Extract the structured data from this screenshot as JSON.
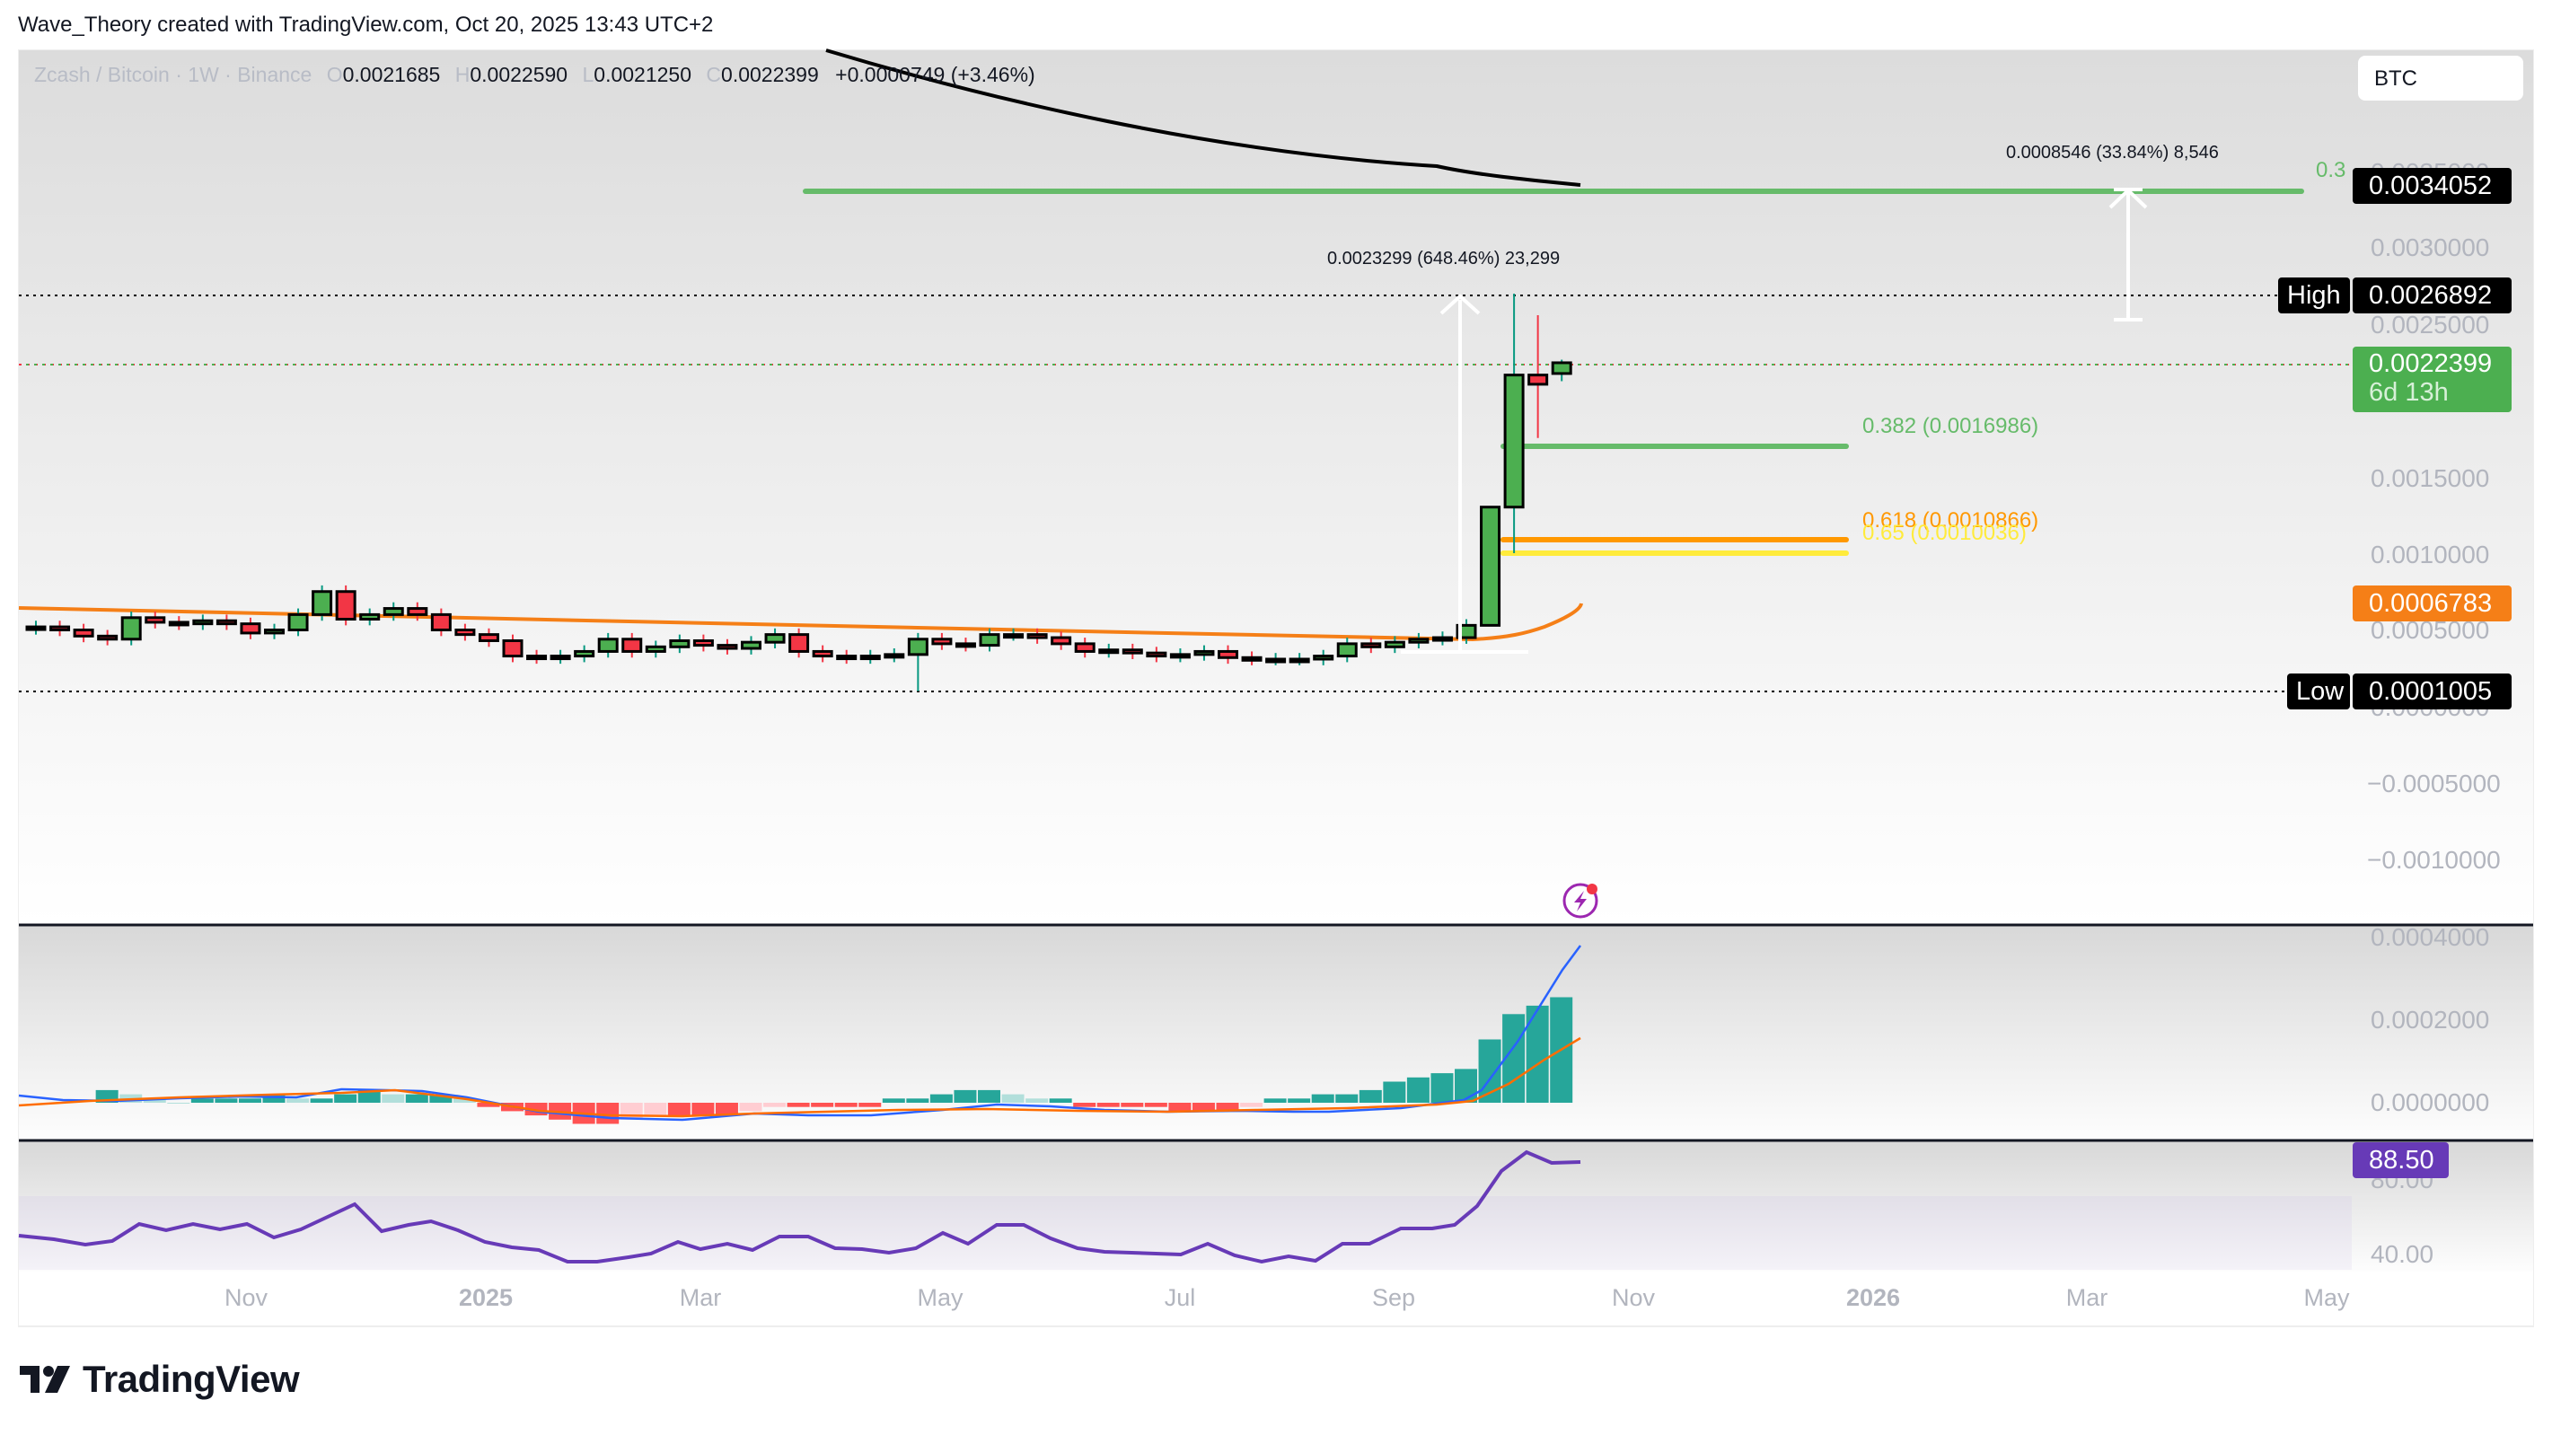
{
  "header": {
    "attribution": "Wave_Theory created with TradingView.com, Oct 20, 2025 13:43 UTC+2"
  },
  "legend": {
    "symbol": "Zcash / Bitcoin · 1W · Binance",
    "open_key": "O",
    "open": "0.0021685",
    "high_key": "H",
    "high": "0.0022590",
    "low_key": "L",
    "low": "0.0021250",
    "close_key": "C",
    "close": "0.0022399",
    "change": "+0.0000749 (+3.46%)"
  },
  "currency_button": {
    "label": "BTC"
  },
  "price_axis": {
    "ticks": [
      "0.0035000",
      "0.0030000",
      "0.0025000",
      "0.0015000",
      "0.0010000",
      "0.0005000",
      "0.0000000",
      "−0.0005000",
      "−0.0010000"
    ]
  },
  "price_tags": {
    "target": {
      "value": "0.0034052",
      "color": "#000000"
    },
    "high": {
      "label": "High",
      "value": "0.0026892",
      "color": "#000000"
    },
    "last": {
      "value": "0.0022399",
      "countdown": "6d 13h",
      "color": "#4caf50"
    },
    "ema": {
      "value": "0.0006783",
      "color": "#f57f17"
    },
    "low": {
      "label": "Low",
      "value": "0.0001005",
      "color": "#000000"
    }
  },
  "annotations": {
    "measure_big": "0.0023299 (648.46%) 23,299",
    "measure_target": "0.0008546 (33.84%) 8,546",
    "fib_target_label": "0.3",
    "fib_382": "0.382 (0.0016986)",
    "fib_618": "0.618 (0.0010866)",
    "fib_65": "0.65 (0.0010036)"
  },
  "macd_axis": {
    "ticks": [
      "0.0004000",
      "0.0002000",
      "0.0000000"
    ]
  },
  "rsi": {
    "value": "88.50",
    "color": "#673ab7",
    "ticks": [
      "80.00",
      "40.00"
    ]
  },
  "time_axis": {
    "labels": [
      {
        "text": "Nov",
        "year": false
      },
      {
        "text": "2025",
        "year": true
      },
      {
        "text": "Mar",
        "year": false
      },
      {
        "text": "May",
        "year": false
      },
      {
        "text": "Jul",
        "year": false
      },
      {
        "text": "Sep",
        "year": false
      },
      {
        "text": "Nov",
        "year": false
      },
      {
        "text": "2026",
        "year": true
      },
      {
        "text": "Mar",
        "year": false
      },
      {
        "text": "May",
        "year": false
      }
    ]
  },
  "branding": {
    "logo_text": "TradingView"
  },
  "colors": {
    "up": "#4caf50",
    "down": "#f23645",
    "ema": "#f57f17",
    "ma_black": "#000000",
    "fib_target": "#66bb6a",
    "fib_382": "#66bb6a",
    "fib_618": "#ff9800",
    "fib_65": "#ffeb3b",
    "macd_line": "#2962ff",
    "signal_line": "#ff6d00",
    "hist_up": "#26a69a",
    "hist_down": "#ff5252",
    "rsi": "#673ab7"
  },
  "chart_data": {
    "type": "candlestick",
    "title": "Zcash / Bitcoin · 1W · Binance",
    "xlabel": "",
    "ylabel": "BTC",
    "ylim": [
      -0.0011,
      0.0038
    ],
    "x_ticks": [
      "Nov",
      "2025",
      "Mar",
      "May",
      "Jul",
      "Sep",
      "Nov",
      "2026",
      "Mar",
      "May"
    ],
    "ohlc_last": {
      "open": 0.0021685,
      "high": 0.002259,
      "low": 0.002125,
      "close": 0.0022399,
      "change": 7.49e-05,
      "change_pct": 3.46
    },
    "range_high": 0.0026892,
    "range_low": 0.0001005,
    "ema_value": 0.0006783,
    "fib_levels": [
      {
        "ratio": 0.382,
        "price": 0.0016986
      },
      {
        "ratio": 0.618,
        "price": 0.0010866
      },
      {
        "ratio": 0.65,
        "price": 0.0010036
      },
      {
        "ratio": "0.3 (target)",
        "price": 0.0034052
      }
    ],
    "measurements": [
      {
        "delta": 0.0023299,
        "pct": 648.46,
        "ticks": 23299
      },
      {
        "delta": 0.0008546,
        "pct": 33.84,
        "ticks": 8546
      }
    ],
    "weekly_closes_approx": [
      0.00052,
      0.0005,
      0.00046,
      0.00044,
      0.00058,
      0.00055,
      0.00054,
      0.00056,
      0.00054,
      0.00048,
      0.0005,
      0.0006,
      0.00075,
      0.00057,
      0.0006,
      0.00064,
      0.0006,
      0.0005,
      0.00047,
      0.00043,
      0.00033,
      0.00032,
      0.00033,
      0.00036,
      0.00044,
      0.00036,
      0.00039,
      0.00043,
      0.0004,
      0.00038,
      0.00042,
      0.00047,
      0.00036,
      0.00033,
      0.00032,
      0.00033,
      0.00034,
      0.00044,
      0.00041,
      0.0004,
      0.00047,
      0.00047,
      0.00045,
      0.00041,
      0.00036,
      0.00037,
      0.00035,
      0.00033,
      0.00034,
      0.00036,
      0.00032,
      0.00031,
      0.00031,
      0.00031,
      0.00033,
      0.00041,
      0.00039,
      0.00042,
      0.00044,
      0.00045,
      0.00053,
      0.0013,
      0.00216,
      0.0021,
      0.00224
    ],
    "macd": {
      "ticks": [
        0.0004,
        0.0002,
        0.0
      ],
      "last_macd_approx": 0.00038,
      "last_signal_approx": 0.00016,
      "last_hist_approx": 0.00022
    },
    "rsi": {
      "last": 88.5,
      "band": [
        40,
        80
      ],
      "peak_approx": 93
    }
  }
}
